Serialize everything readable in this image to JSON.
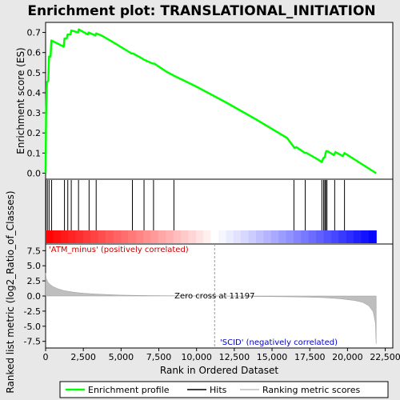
{
  "chart_data": {
    "type": "line",
    "title": "Enrichment plot: TRANSLATIONAL_INITIATION",
    "top_panel": {
      "ylabel": "Enrichment score (ES)",
      "ylim": [
        -0.03,
        0.75
      ],
      "yticks": [
        0.0,
        0.1,
        0.2,
        0.3,
        0.4,
        0.5,
        0.6,
        0.7
      ],
      "ytick_labels": [
        "0.0",
        "0.1",
        "0.2",
        "0.3",
        "0.4",
        "0.5",
        "0.6",
        "0.7"
      ],
      "series": [
        {
          "name": "Enrichment profile",
          "color": "#00ff00",
          "points": [
            [
              0,
              0.0
            ],
            [
              30,
              0.29
            ],
            [
              80,
              0.45
            ],
            [
              180,
              0.46
            ],
            [
              230,
              0.58
            ],
            [
              330,
              0.58
            ],
            [
              380,
              0.66
            ],
            [
              1200,
              0.63
            ],
            [
              1250,
              0.67
            ],
            [
              1400,
              0.67
            ],
            [
              1450,
              0.69
            ],
            [
              1650,
              0.69
            ],
            [
              1700,
              0.71
            ],
            [
              2150,
              0.7
            ],
            [
              2200,
              0.715
            ],
            [
              2800,
              0.69
            ],
            [
              2850,
              0.7
            ],
            [
              3300,
              0.685
            ],
            [
              3350,
              0.695
            ],
            [
              3700,
              0.685
            ],
            [
              4500,
              0.65
            ],
            [
              5700,
              0.595
            ],
            [
              5800,
              0.595
            ],
            [
              6400,
              0.57
            ],
            [
              6500,
              0.565
            ],
            [
              7100,
              0.545
            ],
            [
              7200,
              0.545
            ],
            [
              8000,
              0.505
            ],
            [
              8500,
              0.485
            ],
            [
              10000,
              0.43
            ],
            [
              12000,
              0.35
            ],
            [
              14000,
              0.265
            ],
            [
              16000,
              0.175
            ],
            [
              16500,
              0.125
            ],
            [
              16600,
              0.13
            ],
            [
              17200,
              0.1
            ],
            [
              17300,
              0.1
            ],
            [
              18000,
              0.07
            ],
            [
              18300,
              0.055
            ],
            [
              18400,
              0.075
            ],
            [
              18500,
              0.08
            ],
            [
              18550,
              0.1
            ],
            [
              18600,
              0.11
            ],
            [
              18700,
              0.108
            ],
            [
              19100,
              0.09
            ],
            [
              19200,
              0.105
            ],
            [
              19700,
              0.085
            ],
            [
              19800,
              0.1
            ],
            [
              21900,
              0.0
            ]
          ]
        }
      ]
    },
    "hits": [
      20,
      120,
      230,
      400,
      1250,
      1470,
      1700,
      2180,
      2880,
      3350,
      5750,
      6520,
      7150,
      8500,
      16450,
      17200,
      18300,
      18420,
      18500,
      18560,
      18640,
      19150,
      19800
    ],
    "bottom_panel": {
      "ylabel": "Ranked list metric (log2_Ratio_of_Classes)",
      "ylim": [
        -8.6,
        8.6
      ],
      "yticks": [
        -7.5,
        -5.0,
        -2.5,
        0.0,
        2.5,
        5.0,
        7.5
      ],
      "ytick_labels": [
        "-7.5",
        "-5.0",
        "-2.5",
        "0.0",
        "2.5",
        "5.0",
        "7.5"
      ],
      "metric_points": [
        [
          0,
          3.8
        ],
        [
          50,
          2.9
        ],
        [
          150,
          2.3
        ],
        [
          300,
          1.9
        ],
        [
          500,
          1.55
        ],
        [
          800,
          1.2
        ],
        [
          1200,
          0.9
        ],
        [
          1800,
          0.65
        ],
        [
          2500,
          0.45
        ],
        [
          3500,
          0.3
        ],
        [
          5000,
          0.15
        ],
        [
          7000,
          0.07
        ],
        [
          9000,
          0.03
        ],
        [
          11197,
          0.0
        ],
        [
          13000,
          -0.05
        ],
        [
          15000,
          -0.1
        ],
        [
          16500,
          -0.15
        ],
        [
          17500,
          -0.2
        ],
        [
          18500,
          -0.28
        ],
        [
          19500,
          -0.45
        ],
        [
          20500,
          -0.75
        ],
        [
          21000,
          -1.05
        ],
        [
          21400,
          -1.6
        ],
        [
          21700,
          -2.6
        ],
        [
          21850,
          -4.5
        ],
        [
          21900,
          -7.9
        ]
      ],
      "zero_cross_label": "Zero cross at 11197",
      "zero_cross_x": 11197,
      "positive_label": "'ATM_minus' (positively correlated)",
      "negative_label": "'SCID' (negatively correlated)"
    },
    "xlabel": "Rank in Ordered Dataset",
    "xlim": [
      0,
      23000
    ],
    "xticks": [
      0,
      2500,
      5000,
      7500,
      10000,
      12500,
      15000,
      17500,
      20000,
      22500
    ],
    "xtick_labels": [
      "0",
      "2,500",
      "5,000",
      "7,500",
      "10,000",
      "12,500",
      "15,000",
      "17,500",
      "20,000",
      "22,500"
    ],
    "n_genes": 21900,
    "legend": {
      "placement": "bottom",
      "entries": [
        {
          "name": "Enrichment profile",
          "color": "#00ff00"
        },
        {
          "name": "Hits",
          "color": "#000000"
        },
        {
          "name": "Ranking metric scores",
          "color": "#bebebe"
        }
      ]
    },
    "colors": {
      "frame": "#000000",
      "grid_panel_bg": "#ffffff",
      "outer_bg": "#e8e8e8",
      "positive_text": "#cc0000",
      "negative_text": "#0000cc",
      "metric_fill": "#bebebe"
    }
  }
}
